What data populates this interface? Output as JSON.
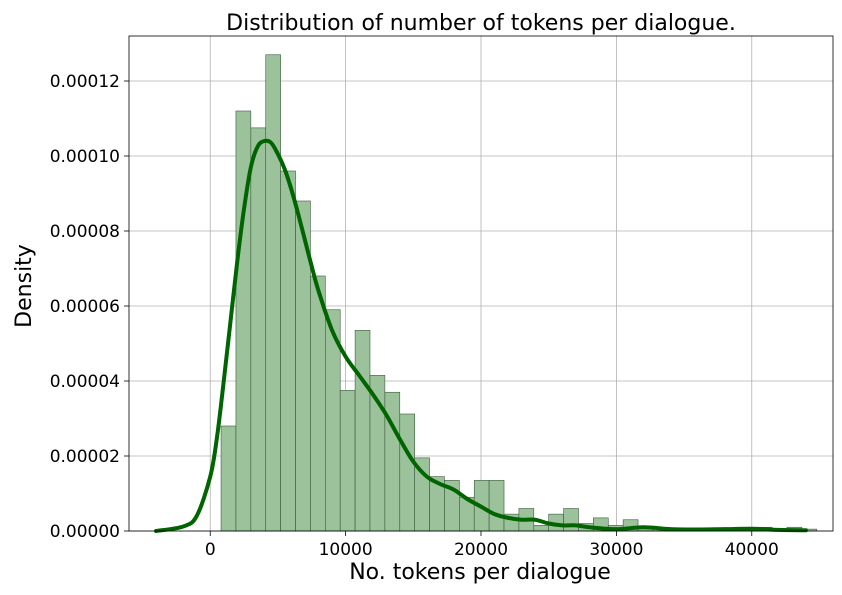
{
  "chart_data": {
    "type": "bar",
    "title": "Distribution of number of tokens per dialogue.",
    "xlabel": "No. tokens per dialogue",
    "ylabel": "Density",
    "xlim": [
      -6000,
      46000
    ],
    "ylim": [
      0,
      0.000132
    ],
    "grid": true,
    "x_ticks": [
      0,
      10000,
      20000,
      30000,
      40000
    ],
    "x_tick_labels": [
      "0",
      "10000",
      "20000",
      "30000",
      "40000"
    ],
    "y_ticks": [
      0,
      2e-05,
      4e-05,
      6e-05,
      8e-05,
      0.0001,
      0.00012
    ],
    "y_tick_labels": [
      "0.00000",
      "0.00002",
      "0.00004",
      "0.00006",
      "0.00008",
      "0.00010",
      "0.00012"
    ],
    "histogram": {
      "bin_start": 800,
      "bin_width": 1100,
      "densities": [
        2.8e-05,
        0.000112,
        0.0001075,
        0.000127,
        9.6e-05,
        8.8e-05,
        6.8e-05,
        5.9e-05,
        3.75e-05,
        5.35e-05,
        4.15e-05,
        3.7e-05,
        3.12e-05,
        1.95e-05,
        1.45e-05,
        1.35e-05,
        9e-06,
        1.35e-05,
        1.35e-05,
        4.5e-06,
        6e-06,
        1.5e-06,
        4.5e-06,
        6e-06,
        2e-06,
        3.5e-06,
        1.5e-06,
        3e-06,
        1e-06,
        5e-07,
        5e-07,
        5e-07,
        5e-07,
        5e-07,
        5e-07,
        5e-07,
        1e-06,
        5e-07,
        1e-06,
        5e-07
      ],
      "fill_color": "#9bc29b",
      "edge_color": "#3c5a3c"
    },
    "kde": {
      "color": "#006400",
      "x": [
        -4000,
        -2000,
        -1000,
        0,
        500,
        1000,
        1500,
        2000,
        2500,
        3000,
        3500,
        4000,
        4500,
        5000,
        5500,
        6000,
        6500,
        7000,
        7500,
        8000,
        9000,
        10000,
        11000,
        12000,
        13000,
        14000,
        15000,
        16000,
        17000,
        18000,
        19000,
        20000,
        21000,
        22000,
        23000,
        24000,
        25000,
        26000,
        27000,
        28000,
        30000,
        32000,
        34000,
        36000,
        38000,
        40000,
        42000,
        44000
      ],
      "y": [
        0,
        1.2e-06,
        4e-06,
        1.45e-05,
        2.5e-05,
        4e-05,
        5.6e-05,
        7.2e-05,
        8.6e-05,
        9.7e-05,
        0.0001025,
        0.000104,
        0.0001035,
        0.0001005,
        9.65e-05,
        9.1e-05,
        8.45e-05,
        7.75e-05,
        7.05e-05,
        6.4e-05,
        5.35e-05,
        4.65e-05,
        4.15e-05,
        3.65e-05,
        3.1e-05,
        2.45e-05,
        1.85e-05,
        1.45e-05,
        1.25e-05,
        1.1e-05,
        8.5e-06,
        6.5e-06,
        4.5e-06,
        3.5e-06,
        3e-06,
        3e-06,
        2e-06,
        1.5e-06,
        1.5e-06,
        1e-06,
        5e-07,
        1e-06,
        5e-07,
        4e-07,
        5e-07,
        6e-07,
        3e-07,
        2e-07
      ]
    }
  }
}
